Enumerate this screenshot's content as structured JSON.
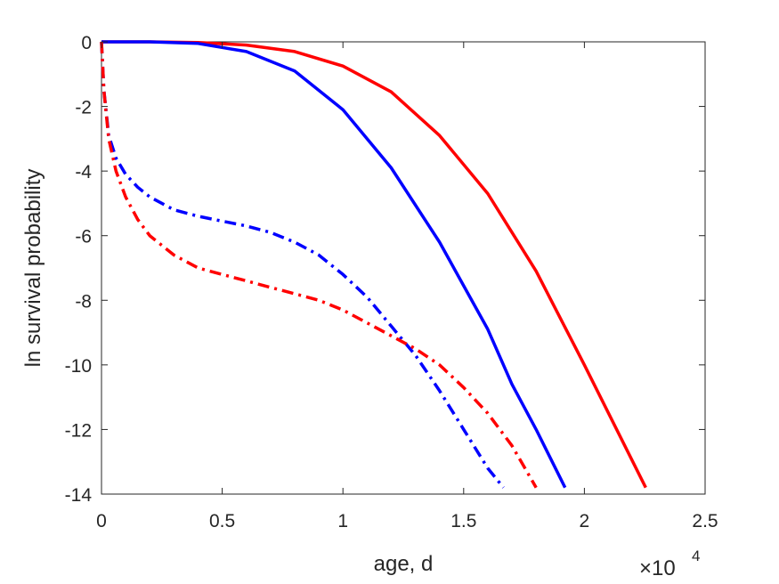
{
  "chart_data": {
    "type": "line",
    "title": "",
    "xlabel": "age, d",
    "ylabel": "ln survival probability",
    "x_exponent_label": "×10",
    "x_exponent_power": "4",
    "xlim": [
      0,
      25000
    ],
    "ylim": [
      -14,
      0
    ],
    "xticks": [
      0,
      5000,
      10000,
      15000,
      20000,
      25000
    ],
    "xtick_labels": [
      "0",
      "0.5",
      "1",
      "1.5",
      "2",
      "2.5"
    ],
    "yticks": [
      0,
      -2,
      -4,
      -6,
      -8,
      -10,
      -12,
      -14
    ],
    "ytick_labels": [
      "0",
      "-2",
      "-4",
      "-6",
      "-8",
      "-10",
      "-12",
      "-14"
    ],
    "grid": false,
    "series": [
      {
        "color": "#ff0000",
        "style": "solid",
        "x": [
          0,
          2000,
          4000,
          6000,
          8000,
          10000,
          12000,
          14000,
          16000,
          18000,
          20000,
          22540
        ],
        "y": [
          0,
          0,
          -0.02,
          -0.1,
          -0.3,
          -0.75,
          -1.55,
          -2.9,
          -4.7,
          -7.1,
          -10.0,
          -13.8
        ]
      },
      {
        "color": "#0000ff",
        "style": "solid",
        "x": [
          0,
          2000,
          4000,
          6000,
          8000,
          10000,
          12000,
          14000,
          16000,
          17000,
          18000,
          19200
        ],
        "y": [
          0,
          0,
          -0.05,
          -0.3,
          -0.9,
          -2.1,
          -3.9,
          -6.2,
          -8.9,
          -10.6,
          -12.0,
          -13.8
        ]
      },
      {
        "color": "#0000ff",
        "style": "dashdot",
        "x": [
          0,
          100,
          300,
          600,
          1000,
          1500,
          2000,
          3000,
          4000,
          5000,
          6000,
          7000,
          8000,
          9000,
          10000,
          11000,
          12000,
          13000,
          14000,
          15000,
          16000,
          16650
        ],
        "y": [
          0,
          -1.5,
          -2.9,
          -3.6,
          -4.1,
          -4.5,
          -4.8,
          -5.2,
          -5.4,
          -5.55,
          -5.7,
          -5.9,
          -6.2,
          -6.6,
          -7.2,
          -7.9,
          -8.8,
          -9.7,
          -10.8,
          -12.0,
          -13.2,
          -13.8
        ]
      },
      {
        "color": "#ff0000",
        "style": "dashdot",
        "x": [
          0,
          100,
          300,
          600,
          1000,
          1500,
          2000,
          3000,
          4000,
          5000,
          6000,
          7000,
          8000,
          9000,
          10000,
          11000,
          12000,
          13000,
          14000,
          15000,
          16000,
          17000,
          18000
        ],
        "y": [
          0,
          -1.5,
          -3.0,
          -4.0,
          -4.8,
          -5.5,
          -6.0,
          -6.6,
          -7.0,
          -7.2,
          -7.4,
          -7.6,
          -7.8,
          -8.0,
          -8.3,
          -8.7,
          -9.1,
          -9.5,
          -10.0,
          -10.7,
          -11.5,
          -12.5,
          -13.8
        ]
      }
    ]
  }
}
